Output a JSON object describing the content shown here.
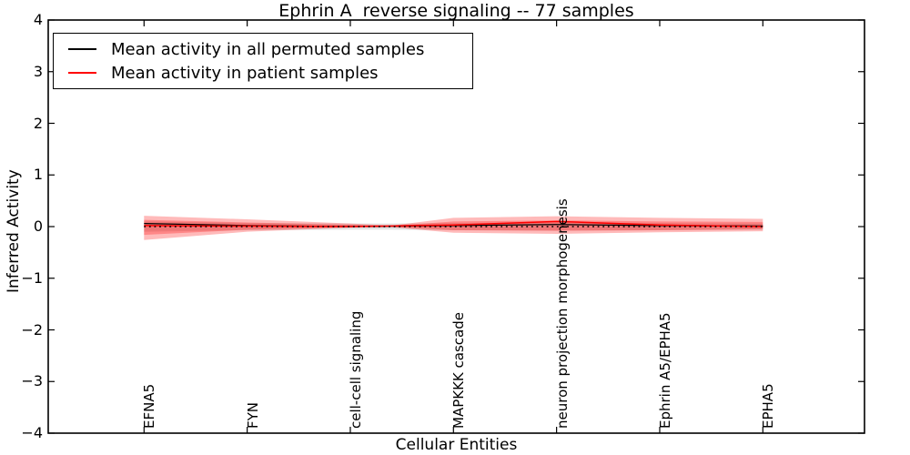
{
  "title": "Ephrin A  reverse signaling -- 77 samples",
  "legend": [
    {
      "label": "Mean activity in all permuted samples",
      "color": "#000000"
    },
    {
      "label": "Mean activity in patient samples",
      "color": "#ff0000"
    }
  ],
  "colors": {
    "patient_line": "#ff0000",
    "permuted_line": "#000000",
    "patient_band": "rgba(255,0,0,0.27)",
    "permuted_band": "rgba(90,90,90,0.18)",
    "frame": "#000000"
  },
  "chart_data": {
    "type": "line",
    "title": "Ephrin A  reverse signaling -- 77 samples",
    "xlabel": "Cellular Entities",
    "ylabel": "Inferred Activity",
    "ylim": [
      -4,
      4
    ],
    "yticks": [
      4,
      3,
      2,
      1,
      0,
      -1,
      -2,
      -3,
      -4
    ],
    "grid": false,
    "legend_position": "upper left",
    "categories": [
      "EFNA5",
      "FYN",
      "cell-cell signaling",
      "MAPKKK cascade",
      "neuron projection morphogenesis",
      "Ephrin A5/EPHA5",
      "EPHA5"
    ],
    "series": [
      {
        "name": "Mean activity in all permuted samples",
        "color": "#000000",
        "style": "solid",
        "width": 1.3,
        "values": [
          0.06,
          0.02,
          0.0,
          0.02,
          0.04,
          0.02,
          0.01
        ]
      },
      {
        "name": "Mean activity in patient samples",
        "color": "#ff0000",
        "style": "solid",
        "width": 1.5,
        "values": [
          0.02,
          0.01,
          0.0,
          0.03,
          0.1,
          0.03,
          0.0
        ]
      },
      {
        "name": "zero reference (dotted)",
        "color": "#000000",
        "style": "dotted",
        "width": 1.6,
        "values": [
          0,
          0,
          0,
          0,
          0,
          0,
          0
        ]
      }
    ],
    "bands": [
      {
        "name": "permuted samples spread",
        "color": "rgba(90,90,90,0.18)",
        "x": [
          0,
          1,
          2,
          2.4,
          3,
          4,
          5,
          6
        ],
        "upper": [
          0.1,
          0.07,
          0.06,
          0.06,
          0.07,
          0.08,
          0.07,
          0.06
        ],
        "lower": [
          -0.1,
          -0.07,
          -0.06,
          -0.06,
          -0.07,
          -0.08,
          -0.07,
          -0.06
        ]
      },
      {
        "name": "patient samples spread (outer)",
        "color": "rgba(255,0,0,0.27)",
        "x": [
          0,
          1,
          2,
          2.4,
          3,
          4,
          5,
          6
        ],
        "upper": [
          0.21,
          0.14,
          0.06,
          0.02,
          0.17,
          0.2,
          0.17,
          0.15
        ],
        "lower": [
          -0.26,
          -0.1,
          -0.02,
          -0.01,
          -0.12,
          -0.14,
          -0.11,
          -0.09
        ]
      },
      {
        "name": "patient samples spread (inner)",
        "color": "rgba(255,0,0,0.27)",
        "x": [
          0,
          1,
          2,
          2.4,
          3,
          4,
          5,
          6
        ],
        "upper": [
          0.13,
          0.08,
          0.035,
          0.012,
          0.1,
          0.12,
          0.1,
          0.09
        ],
        "lower": [
          -0.16,
          -0.06,
          -0.012,
          -0.006,
          -0.07,
          -0.08,
          -0.07,
          -0.05
        ]
      }
    ]
  }
}
